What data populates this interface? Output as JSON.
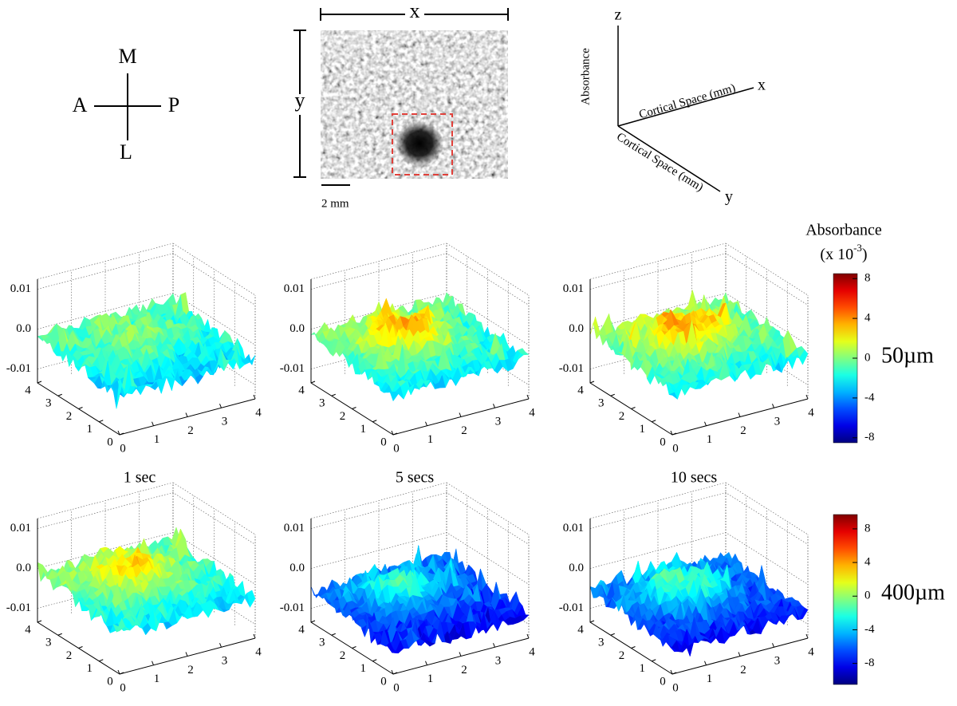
{
  "orientation": {
    "top": "M",
    "left": "A",
    "right": "P",
    "bottom": "L"
  },
  "image": {
    "x_label": "x",
    "y_label": "y",
    "scale_bar": "2 mm"
  },
  "axes_diagram": {
    "z": "z",
    "x": "x",
    "y": "y",
    "z_title": "Absorbance",
    "x_title": "Cortical Space (mm)",
    "y_title": "Cortical Space (mm)"
  },
  "panels": {
    "zlim": [
      -0.0135,
      0.0125
    ],
    "zticks": [
      0.01,
      {
        "value": 0,
        "label": "0.0"
      },
      -0.01
    ],
    "xlim": [
      0,
      4
    ],
    "xticks": [
      0,
      1,
      2,
      3,
      4
    ],
    "ylim": [
      0,
      4
    ],
    "yticks": [
      0,
      1,
      2,
      3,
      4
    ],
    "time_labels": [
      "1 sec",
      "5 secs",
      "10 secs"
    ]
  },
  "colorbar_title": "Absorbance",
  "colorbar_unit": "(x 10",
  "colorbar_exponent": "-3",
  "colorbar_unit_end": ")",
  "rows": [
    {
      "label": "50µm",
      "colorbar": {
        "clim": [
          -8.5,
          8.5
        ],
        "ticks": [
          8,
          4,
          0,
          -4,
          -8
        ]
      }
    },
    {
      "label": "400µm",
      "colorbar": {
        "clim": [
          -10.5,
          9.7
        ],
        "ticks": [
          8,
          4,
          0,
          -4,
          -8
        ]
      }
    }
  ]
}
